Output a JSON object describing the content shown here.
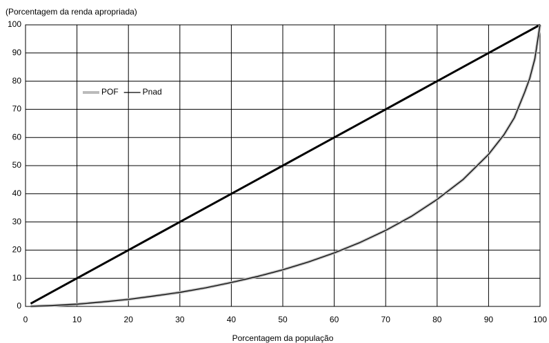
{
  "chart_data": {
    "type": "line",
    "title": "(Porcentagem da renda apropriada)",
    "x_label": "Porcentagem da população",
    "x": [
      1,
      5,
      10,
      15,
      20,
      25,
      30,
      35,
      40,
      45,
      50,
      55,
      60,
      65,
      70,
      75,
      80,
      85,
      90,
      93,
      95,
      97,
      98,
      99,
      100
    ],
    "series": [
      {
        "color": "#000000",
        "values": [
          1,
          5,
          10,
          15,
          20,
          25,
          30,
          35,
          40,
          45,
          50,
          55,
          60,
          65,
          70,
          75,
          80,
          85,
          90,
          93,
          95,
          97,
          98,
          99,
          100
        ]
      },
      {
        "name": "POF",
        "color": "#bbbbbb",
        "values": [
          0.05,
          0.3,
          0.8,
          1.6,
          2.5,
          3.7,
          5,
          6.6,
          8.5,
          10.6,
          13,
          15.8,
          19,
          22.7,
          27,
          32,
          38,
          45,
          54,
          61,
          67,
          76,
          81,
          88,
          100
        ]
      },
      {
        "name": "Pnad",
        "color": "#000000",
        "values": [
          0.05,
          0.3,
          0.8,
          1.6,
          2.5,
          3.7,
          5,
          6.6,
          8.5,
          10.6,
          13,
          15.8,
          19,
          22.7,
          27,
          32,
          38,
          45,
          54,
          61,
          67,
          76,
          81,
          88,
          100
        ]
      }
    ],
    "xlim": [
      0,
      100
    ],
    "xticks": [
      0,
      10,
      20,
      30,
      40,
      50,
      60,
      70,
      80,
      90,
      100
    ],
    "ylim": [
      0,
      100
    ],
    "yticks": [
      0,
      10,
      20,
      30,
      40,
      50,
      60,
      70,
      80,
      90,
      100
    ],
    "grid": true,
    "legend": "upper-left"
  }
}
